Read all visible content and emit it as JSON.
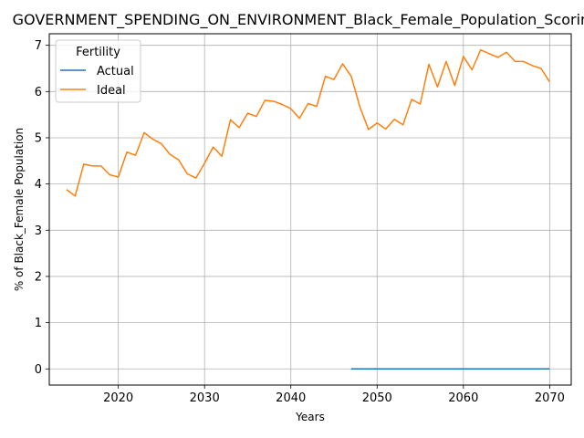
{
  "chart_data": {
    "type": "line",
    "title": "GOVERNMENT_SPENDING_ON_ENVIRONMENT_Black_Female_Population_Scoring",
    "xlabel": "Years",
    "ylabel": "% of Black_Female Population",
    "xlim": [
      2012,
      2072.5
    ],
    "ylim": [
      -0.35,
      7.25
    ],
    "xticks": [
      2020,
      2030,
      2040,
      2050,
      2060,
      2070
    ],
    "yticks": [
      0,
      1,
      2,
      3,
      4,
      5,
      6,
      7
    ],
    "grid": true,
    "legend": {
      "title": "Fertility",
      "placement": "upper-left"
    },
    "series": [
      {
        "name": "Actual",
        "color": "#1f77b4",
        "x": [
          2047,
          2048,
          2049,
          2050,
          2051,
          2052,
          2053,
          2054,
          2055,
          2056,
          2057,
          2058,
          2059,
          2060,
          2061,
          2062,
          2063,
          2064,
          2065,
          2066,
          2067,
          2068,
          2069,
          2070
        ],
        "y": [
          0,
          0,
          0,
          0,
          0,
          0,
          0,
          0,
          0,
          0,
          0,
          0,
          0,
          0,
          0,
          0,
          0,
          0,
          0,
          0,
          0,
          0,
          0,
          0
        ]
      },
      {
        "name": "Ideal",
        "color": "#ff7f0e",
        "x": [
          2014,
          2015,
          2016,
          2017,
          2018,
          2019,
          2020,
          2021,
          2022,
          2023,
          2024,
          2025,
          2026,
          2027,
          2028,
          2029,
          2030,
          2031,
          2032,
          2033,
          2034,
          2035,
          2036,
          2037,
          2038,
          2039,
          2040,
          2041,
          2042,
          2043,
          2044,
          2045,
          2046,
          2047,
          2048,
          2049,
          2050,
          2051,
          2052,
          2053,
          2054,
          2055,
          2056,
          2057,
          2058,
          2059,
          2060,
          2061,
          2062,
          2063,
          2064,
          2065,
          2066,
          2067,
          2068,
          2069,
          2070
        ],
        "y": [
          3.88,
          3.74,
          4.43,
          4.39,
          4.39,
          4.2,
          4.15,
          4.69,
          4.62,
          5.11,
          4.97,
          4.87,
          4.64,
          4.52,
          4.22,
          4.13,
          4.45,
          4.8,
          4.6,
          5.39,
          5.22,
          5.53,
          5.46,
          5.81,
          5.79,
          5.72,
          5.63,
          5.42,
          5.74,
          5.68,
          6.33,
          6.26,
          6.6,
          6.33,
          5.67,
          5.18,
          5.32,
          5.19,
          5.4,
          5.28,
          5.83,
          5.73,
          6.59,
          6.1,
          6.65,
          6.13,
          6.76,
          6.47,
          6.9,
          6.82,
          6.74,
          6.85,
          6.65,
          6.65,
          6.56,
          6.5,
          6.21
        ]
      }
    ]
  }
}
